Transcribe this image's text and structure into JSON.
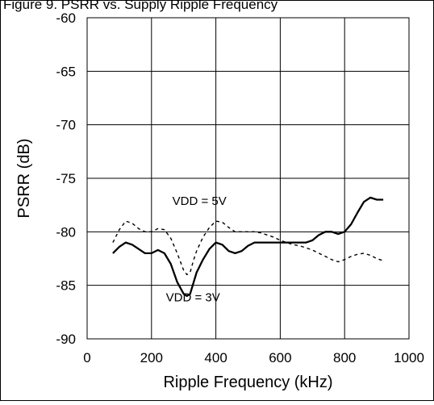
{
  "chart_data": {
    "type": "line",
    "title": "Figure 9. PSRR vs. Supply Ripple Frequency",
    "xlabel": "Ripple Frequency (kHz)",
    "ylabel": "PSRR (dB)",
    "xlim": [
      0,
      1000
    ],
    "ylim": [
      -90,
      -60
    ],
    "x_ticks": [
      0,
      200,
      400,
      600,
      800,
      1000
    ],
    "y_ticks": [
      -60,
      -65,
      -70,
      -75,
      -80,
      -85,
      -90
    ],
    "x_tick_labels": [
      "0",
      "200",
      "400",
      "600",
      "800",
      "1000"
    ],
    "y_tick_labels": [
      "-60",
      "-65",
      "-70",
      "-75",
      "-80",
      "-85",
      "-90"
    ],
    "grid": true,
    "series": [
      {
        "name": "VDD = 3V",
        "style": "solid",
        "color": "#000000",
        "x": [
          80,
          100,
          120,
          140,
          160,
          180,
          200,
          220,
          240,
          260,
          280,
          300,
          310,
          320,
          330,
          340,
          360,
          380,
          400,
          420,
          440,
          460,
          480,
          500,
          520,
          540,
          560,
          580,
          600,
          620,
          640,
          660,
          680,
          700,
          720,
          740,
          760,
          780,
          800,
          820,
          840,
          860,
          880,
          900,
          920
        ],
        "y": [
          -82.0,
          -81.4,
          -81.0,
          -81.2,
          -81.6,
          -82.0,
          -82.0,
          -81.7,
          -82.0,
          -83.0,
          -84.7,
          -85.8,
          -86.0,
          -85.8,
          -84.8,
          -83.8,
          -82.6,
          -81.6,
          -81.0,
          -81.2,
          -81.8,
          -82.0,
          -81.8,
          -81.3,
          -81.0,
          -81.0,
          -81.0,
          -81.0,
          -81.0,
          -81.0,
          -81.0,
          -81.0,
          -81.0,
          -80.8,
          -80.3,
          -80.0,
          -80.0,
          -80.2,
          -80.0,
          -79.3,
          -78.2,
          -77.2,
          -76.8,
          -77.0,
          -77.0
        ]
      },
      {
        "name": "VDD = 5V",
        "style": "dashed",
        "color": "#000000",
        "x": [
          80,
          100,
          120,
          140,
          160,
          180,
          200,
          220,
          240,
          260,
          280,
          300,
          310,
          320,
          330,
          340,
          360,
          380,
          400,
          420,
          440,
          460,
          480,
          500,
          520,
          540,
          560,
          580,
          600,
          620,
          640,
          660,
          680,
          700,
          720,
          740,
          760,
          780,
          800,
          820,
          840,
          860,
          880,
          900,
          920
        ],
        "y": [
          -81.0,
          -79.8,
          -79.0,
          -79.2,
          -79.7,
          -80.0,
          -80.0,
          -79.7,
          -79.8,
          -80.6,
          -82.0,
          -83.6,
          -84.0,
          -83.8,
          -82.7,
          -81.8,
          -80.5,
          -79.6,
          -79.0,
          -79.1,
          -79.6,
          -80.0,
          -80.0,
          -80.0,
          -80.0,
          -80.1,
          -80.3,
          -80.5,
          -80.8,
          -81.0,
          -81.2,
          -81.3,
          -81.5,
          -81.7,
          -82.0,
          -82.3,
          -82.6,
          -82.8,
          -82.6,
          -82.3,
          -82.1,
          -82.0,
          -82.2,
          -82.5,
          -82.7
        ]
      }
    ],
    "annotations": [
      {
        "label": "VDD = 5V",
        "x": 370,
        "y": -77.5
      },
      {
        "label": "VDD = 3V",
        "x": 350,
        "y": -86.5
      }
    ]
  }
}
